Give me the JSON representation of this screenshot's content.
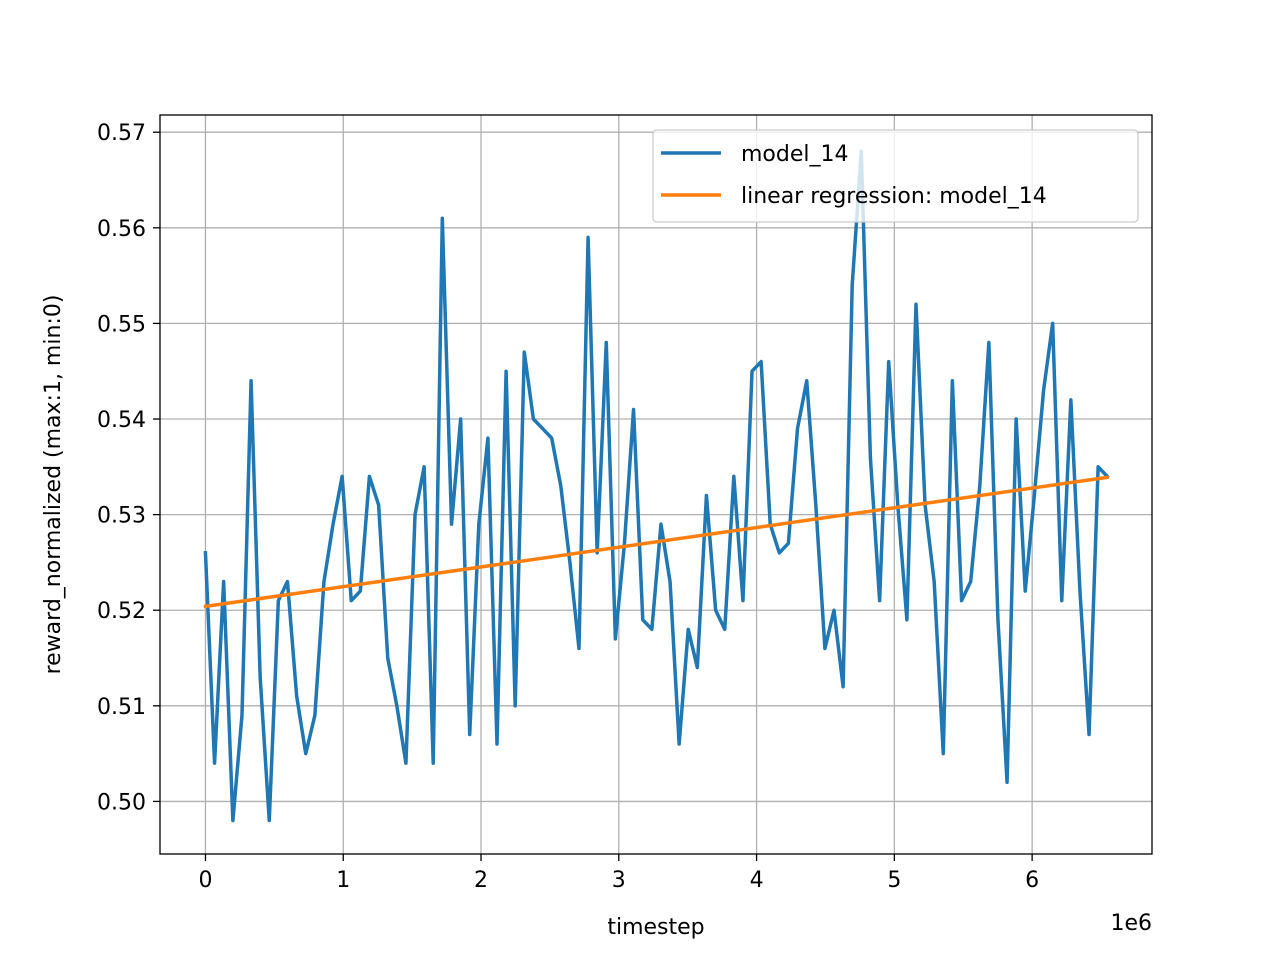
{
  "chart_data": {
    "type": "line",
    "title": "",
    "xlabel": "timestep",
    "ylabel": "reward_normalized (max:1, min:0)",
    "x_offset_text": "1e6",
    "xlim": [
      -0.33,
      6.87
    ],
    "ylim": [
      0.4945,
      0.5718
    ],
    "x_ticks": [
      0,
      1,
      2,
      3,
      4,
      5,
      6
    ],
    "x_tick_labels": [
      "0",
      "1",
      "2",
      "3",
      "4",
      "5",
      "6"
    ],
    "y_ticks": [
      0.5,
      0.51,
      0.52,
      0.53,
      0.54,
      0.55,
      0.56,
      0.57
    ],
    "y_tick_labels": [
      "0.50",
      "0.51",
      "0.52",
      "0.53",
      "0.54",
      "0.55",
      "0.56",
      "0.57"
    ],
    "grid": true,
    "legend_position": "top-right",
    "series": [
      {
        "name": "model_14",
        "color": "#1f77b4",
        "x": [
          0,
          0.066,
          0.132,
          0.199,
          0.265,
          0.331,
          0.397,
          0.463,
          0.529,
          0.595,
          0.662,
          0.728,
          0.794,
          0.86,
          0.926,
          0.992,
          1.058,
          1.124,
          1.19,
          1.257,
          1.323,
          1.389,
          1.455,
          1.521,
          1.587,
          1.653,
          1.719,
          1.786,
          1.852,
          1.918,
          1.984,
          2.05,
          2.116,
          2.182,
          2.248,
          2.314,
          2.38,
          2.447,
          2.513,
          2.579,
          2.645,
          2.711,
          2.777,
          2.843,
          2.909,
          2.975,
          3.041,
          3.107,
          3.174,
          3.24,
          3.306,
          3.372,
          3.438,
          3.504,
          3.57,
          3.636,
          3.703,
          3.769,
          3.835,
          3.901,
          3.967,
          4.033,
          4.099,
          4.165,
          4.231,
          4.297,
          4.364,
          4.43,
          4.496,
          4.562,
          4.628,
          4.694,
          4.76,
          4.826,
          4.893,
          4.959,
          5.025,
          5.091,
          5.157,
          5.223,
          5.289,
          5.355,
          5.421,
          5.488,
          5.554,
          5.62,
          5.686,
          5.752,
          5.818,
          5.884,
          5.95,
          6.016,
          6.083,
          6.149,
          6.215,
          6.281,
          6.347,
          6.413,
          6.479,
          6.545
        ],
        "y": [
          0.526,
          0.504,
          0.523,
          0.498,
          0.509,
          0.544,
          0.513,
          0.498,
          0.521,
          0.523,
          0.511,
          0.505,
          0.509,
          0.523,
          0.529,
          0.534,
          0.521,
          0.522,
          0.534,
          0.531,
          0.515,
          0.51,
          0.504,
          0.53,
          0.535,
          0.504,
          0.561,
          0.529,
          0.54,
          0.507,
          0.529,
          0.538,
          0.506,
          0.545,
          0.51,
          0.547,
          0.54,
          0.539,
          0.538,
          0.533,
          0.525,
          0.516,
          0.559,
          0.526,
          0.548,
          0.517,
          0.527,
          0.541,
          0.519,
          0.518,
          0.529,
          0.523,
          0.506,
          0.518,
          0.514,
          0.532,
          0.52,
          0.518,
          0.534,
          0.521,
          0.545,
          0.546,
          0.529,
          0.526,
          0.527,
          0.539,
          0.544,
          0.531,
          0.516,
          0.52,
          0.512,
          0.554,
          0.568,
          0.536,
          0.521,
          0.546,
          0.531,
          0.519,
          0.552,
          0.531,
          0.523,
          0.505,
          0.544,
          0.521,
          0.523,
          0.533,
          0.548,
          0.519,
          0.502,
          0.54,
          0.522,
          0.532,
          0.543,
          0.55,
          0.521,
          0.542,
          0.522,
          0.507,
          0.535,
          0.534
        ]
      },
      {
        "name": "linear regression: model_14",
        "color": "#ff7f0e",
        "x": [
          0,
          6.545
        ],
        "y": [
          0.5204,
          0.5339
        ]
      }
    ]
  }
}
